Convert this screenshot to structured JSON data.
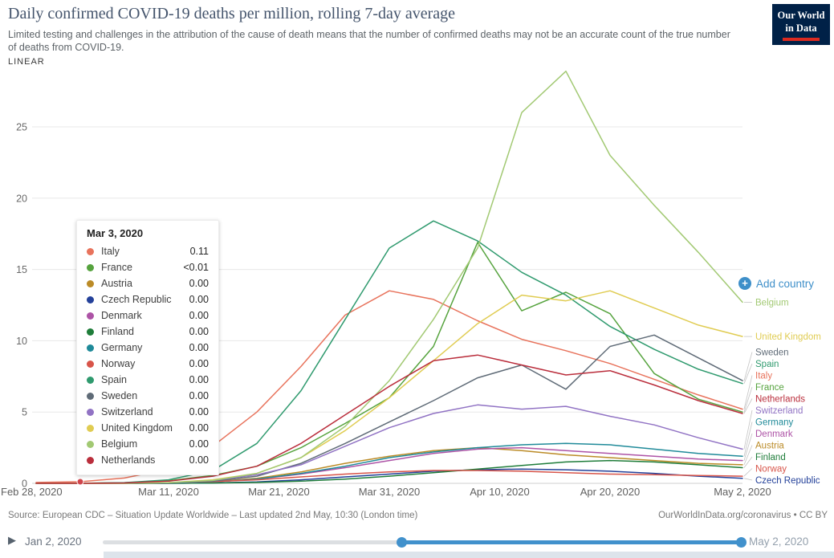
{
  "header": {
    "title": "Daily confirmed COVID-19 deaths per million, rolling 7-day average",
    "subtitle": "Limited testing and challenges in the attribution of the cause of death means that the number of confirmed deaths may not be an accurate count of the true number of deaths from COVID-19.",
    "logo": {
      "line1": "Our World",
      "line2": "in Data"
    }
  },
  "controls": {
    "scale_label": "LINEAR",
    "add_country_label": "Add country",
    "accent_blue": "#3e8fc9"
  },
  "tooltip": {
    "date": "Mar 3, 2020",
    "rows": [
      {
        "label": "Italy",
        "value": "0.11"
      },
      {
        "label": "France",
        "value": "<0.01"
      },
      {
        "label": "Austria",
        "value": "0.00"
      },
      {
        "label": "Czech Republic",
        "value": "0.00"
      },
      {
        "label": "Denmark",
        "value": "0.00"
      },
      {
        "label": "Finland",
        "value": "0.00"
      },
      {
        "label": "Germany",
        "value": "0.00"
      },
      {
        "label": "Norway",
        "value": "0.00"
      },
      {
        "label": "Spain",
        "value": "0.00"
      },
      {
        "label": "Sweden",
        "value": "0.00"
      },
      {
        "label": "Switzerland",
        "value": "0.00"
      },
      {
        "label": "United Kingdom",
        "value": "0.00"
      },
      {
        "label": "Belgium",
        "value": "0.00"
      },
      {
        "label": "Netherlands",
        "value": "0.00"
      }
    ],
    "marker": {
      "day": 4,
      "value": 0.11
    }
  },
  "chart_data": {
    "type": "line",
    "title": "Daily confirmed COVID-19 deaths per million, rolling 7-day average",
    "x_tick_labels": [
      "Feb 28, 2020",
      "Mar 11, 2020",
      "Mar 21, 2020",
      "Mar 31, 2020",
      "Apr 10, 2020",
      "Apr 20, 2020",
      "May 2, 2020"
    ],
    "x_tick_days": [
      0,
      12,
      22,
      32,
      42,
      52,
      64
    ],
    "sample_days": [
      0,
      4,
      8,
      12,
      16,
      20,
      24,
      28,
      32,
      36,
      40,
      44,
      48,
      52,
      56,
      60,
      64
    ],
    "y_ticks": [
      0,
      5,
      10,
      15,
      20,
      25
    ],
    "ylim": [
      0,
      28.9
    ],
    "grid": true,
    "legend_position": "right",
    "series": [
      {
        "name": "Italy",
        "color": "#e8735c",
        "values": [
          0.06,
          0.11,
          0.37,
          1.0,
          2.6,
          5.0,
          8.2,
          11.8,
          13.5,
          12.9,
          11.4,
          10.1,
          9.3,
          8.4,
          7.3,
          6.2,
          5.2
        ]
      },
      {
        "name": "France",
        "color": "#56a33e",
        "values": [
          0,
          0.01,
          0.04,
          0.18,
          0.55,
          1.2,
          2.5,
          4.2,
          6.0,
          9.6,
          16.9,
          12.1,
          13.4,
          11.9,
          7.7,
          5.9,
          5.0
        ]
      },
      {
        "name": "Austria",
        "color": "#bb8b27",
        "values": [
          0,
          0,
          0,
          0.02,
          0.12,
          0.35,
          0.8,
          1.4,
          1.9,
          2.3,
          2.5,
          2.3,
          2.0,
          1.8,
          1.6,
          1.4,
          1.3
        ]
      },
      {
        "name": "Czech Republic",
        "color": "#24419a",
        "values": [
          0,
          0,
          0,
          0,
          0.03,
          0.1,
          0.25,
          0.45,
          0.65,
          0.85,
          0.95,
          1.0,
          0.95,
          0.85,
          0.7,
          0.5,
          0.35
        ]
      },
      {
        "name": "Denmark",
        "color": "#ad53a6",
        "values": [
          0,
          0,
          0,
          0,
          0.1,
          0.3,
          0.65,
          1.1,
          1.6,
          2.1,
          2.4,
          2.5,
          2.3,
          2.1,
          1.9,
          1.7,
          1.6
        ]
      },
      {
        "name": "Finland",
        "color": "#1f7d3a",
        "values": [
          0,
          0,
          0,
          0,
          0.02,
          0.06,
          0.15,
          0.3,
          0.5,
          0.75,
          1.0,
          1.25,
          1.5,
          1.6,
          1.5,
          1.3,
          1.1
        ]
      },
      {
        "name": "Germany",
        "color": "#1f8a99",
        "values": [
          0,
          0,
          0,
          0.02,
          0.1,
          0.3,
          0.7,
          1.2,
          1.8,
          2.2,
          2.5,
          2.7,
          2.8,
          2.7,
          2.4,
          2.1,
          1.9
        ]
      },
      {
        "name": "Norway",
        "color": "#d8554a",
        "values": [
          0,
          0,
          0.02,
          0.05,
          0.12,
          0.25,
          0.45,
          0.65,
          0.8,
          0.9,
          0.9,
          0.85,
          0.75,
          0.65,
          0.6,
          0.55,
          0.5
        ]
      },
      {
        "name": "Spain",
        "color": "#2f9a6e",
        "values": [
          0,
          0,
          0.05,
          0.25,
          0.9,
          2.8,
          6.5,
          11.5,
          16.5,
          18.4,
          17.0,
          14.8,
          13.2,
          11.0,
          9.4,
          8.0,
          7.0
        ]
      },
      {
        "name": "Sweden",
        "color": "#5f6b77",
        "values": [
          0,
          0,
          0,
          0.03,
          0.15,
          0.5,
          1.4,
          2.8,
          4.3,
          5.8,
          7.4,
          8.3,
          6.6,
          9.6,
          10.4,
          8.8,
          7.2
        ]
      },
      {
        "name": "Switzerland",
        "color": "#9173c4",
        "values": [
          0,
          0,
          0,
          0.05,
          0.2,
          0.6,
          1.3,
          2.6,
          3.9,
          4.9,
          5.5,
          5.2,
          5.4,
          4.7,
          4.1,
          3.2,
          2.4
        ]
      },
      {
        "name": "United Kingdom",
        "color": "#e0cc52",
        "values": [
          0,
          0,
          0,
          0.05,
          0.25,
          0.7,
          1.8,
          3.7,
          6.0,
          8.6,
          11.2,
          13.2,
          12.8,
          13.5,
          12.3,
          11.1,
          10.3
        ]
      },
      {
        "name": "Belgium",
        "color": "#a2c973",
        "values": [
          0,
          0,
          0,
          0.05,
          0.2,
          0.7,
          1.8,
          4.0,
          7.2,
          11.5,
          16.5,
          26.0,
          28.9,
          23.0,
          19.5,
          16.2,
          12.7
        ]
      },
      {
        "name": "Netherlands",
        "color": "#ba2e3c",
        "values": [
          0,
          0,
          0.03,
          0.15,
          0.5,
          1.2,
          2.8,
          4.8,
          6.8,
          8.6,
          9.0,
          8.3,
          7.6,
          7.9,
          6.9,
          5.8,
          4.9
        ]
      }
    ]
  },
  "footer": {
    "source": "Source: European CDC – Situation Update Worldwide – Last updated 2nd May, 10:30 (London time)",
    "attribution": "OurWorldInData.org/coronavirus • CC BY"
  },
  "timeline": {
    "start_label": "Jan 2, 2020",
    "end_label": "May 2, 2020"
  }
}
